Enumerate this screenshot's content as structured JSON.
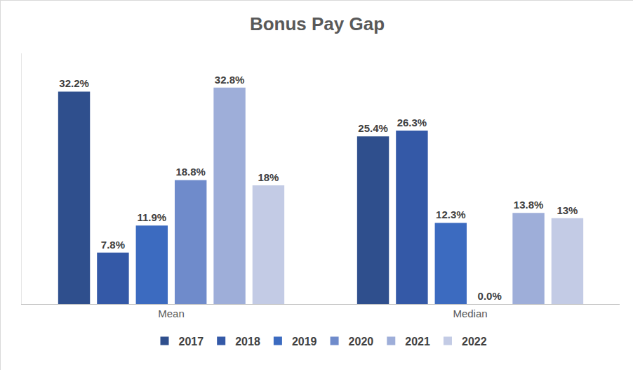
{
  "chart_data": {
    "type": "bar",
    "title": "Bonus Pay Gap",
    "categories": [
      "Mean",
      "Median"
    ],
    "series": [
      {
        "name": "2017",
        "color": "#2f4f8d",
        "values": [
          32.2,
          25.4
        ],
        "value_labels": [
          "32.2%",
          "25.4%"
        ]
      },
      {
        "name": "2018",
        "color": "#3459a7",
        "values": [
          7.8,
          26.3
        ],
        "value_labels": [
          "7.8%",
          "26.3%"
        ]
      },
      {
        "name": "2019",
        "color": "#3c6bc0",
        "values": [
          11.9,
          12.3
        ],
        "value_labels": [
          "11.9%",
          "12.3%"
        ]
      },
      {
        "name": "2020",
        "color": "#6f8bcb",
        "values": [
          18.8,
          0.0
        ],
        "value_labels": [
          "18.8%",
          "0.0%"
        ]
      },
      {
        "name": "2021",
        "color": "#9eaed9",
        "values": [
          32.8,
          13.8
        ],
        "value_labels": [
          "32.8%",
          "13.8%"
        ]
      },
      {
        "name": "2022",
        "color": "#c3cbe5",
        "values": [
          18,
          13
        ],
        "value_labels": [
          "18%",
          "13%"
        ]
      }
    ],
    "ylim": [
      0,
      38
    ],
    "data_labels": true,
    "tick_labels": "x",
    "grid": false,
    "legend": "bottom"
  }
}
